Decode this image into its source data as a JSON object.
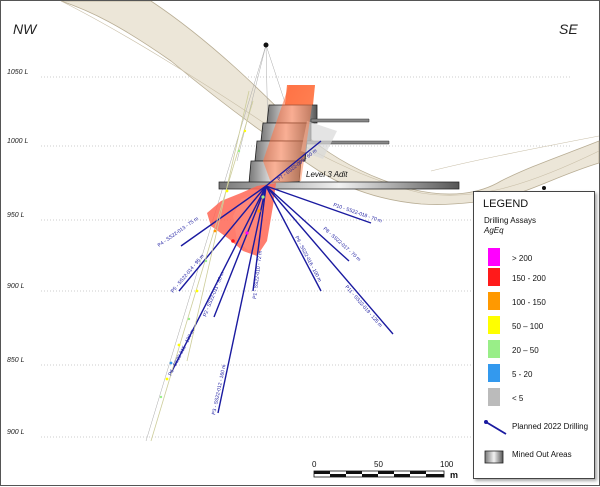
{
  "orientation": {
    "left": "NW",
    "right": "SE"
  },
  "elevations": [
    "1050 L",
    "1000 L",
    "950 L",
    "900 L",
    "850 L",
    "900 L"
  ],
  "adit_label": "Level 3 Adit",
  "drill_holes": [
    {
      "label": "P7 - SS22-009 - 60 m"
    },
    {
      "label": "P10 - SS22-018 - 70 m"
    },
    {
      "label": "P8 - SS22-017 - 70 m"
    },
    {
      "label": "P9 - SS22-016 - 100 m"
    },
    {
      "label": "P11 - SS22-019 - 125 m"
    },
    {
      "label": "P1 - SS22-010 - 72 m"
    },
    {
      "label": "P4 - SS22-013 - 75 m"
    },
    {
      "label": "P5 - SS22-014 - 95 m"
    },
    {
      "label": "P2 - SS22-011 - 88 m"
    },
    {
      "label": "P6 - SS22-015 - 130 m"
    },
    {
      "label": "P3 - SS22-012 - 160 m"
    }
  ],
  "legend": {
    "title": "LEGEND",
    "subtitle": "Drilling Assays",
    "subtitle_unit": "AgEq",
    "classes": [
      {
        "label": "> 200",
        "color": "#ff00ff"
      },
      {
        "label": "150 - 200",
        "color": "#ff1a1a"
      },
      {
        "label": "100 - 150",
        "color": "#ff9900"
      },
      {
        "label": "50 – 100",
        "color": "#ffff00"
      },
      {
        "label": "20 – 50",
        "color": "#99ee88"
      },
      {
        "label": "5 - 20",
        "color": "#3399ee"
      },
      {
        "label": "< 5",
        "color": "#bbbbbb"
      }
    ],
    "planned_label": "Planned 2022 Drilling",
    "mined_label": "Mined Out Areas"
  },
  "scale_bar": {
    "ticks": [
      "0",
      "50",
      "100"
    ],
    "unit": "m"
  }
}
